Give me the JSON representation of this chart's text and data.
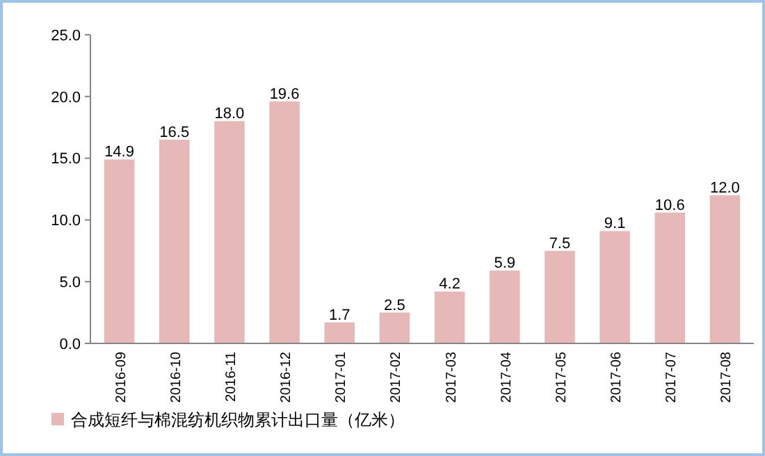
{
  "chart_data": {
    "type": "bar",
    "categories": [
      "2016-09",
      "2016-10",
      "2016-11",
      "2016-12",
      "2017-01",
      "2017-02",
      "2017-03",
      "2017-04",
      "2017-05",
      "2017-06",
      "2017-07",
      "2017-08"
    ],
    "series": [
      {
        "name": "合成短纤与棉混纺机织物累计出口量（亿米）",
        "color": "#e6b9b8",
        "values": [
          14.9,
          16.5,
          18.0,
          19.6,
          1.7,
          2.5,
          4.2,
          5.9,
          7.5,
          9.1,
          10.6,
          12.0
        ],
        "value_labels": [
          "14.9",
          "16.5",
          "18.0",
          "19.6",
          "1.7",
          "2.5",
          "4.2",
          "5.9",
          "7.5",
          "9.1",
          "10.6",
          "12.0"
        ]
      }
    ],
    "ylim": [
      0,
      25
    ],
    "yticks": [
      {
        "value": 0,
        "label": "0.0"
      },
      {
        "value": 5,
        "label": "5.0"
      },
      {
        "value": 10,
        "label": "10.0"
      },
      {
        "value": 15,
        "label": "15.0"
      },
      {
        "value": 20,
        "label": "20.0"
      },
      {
        "value": 25,
        "label": "25.0"
      }
    ],
    "grid": false,
    "legend": "bottom left"
  }
}
